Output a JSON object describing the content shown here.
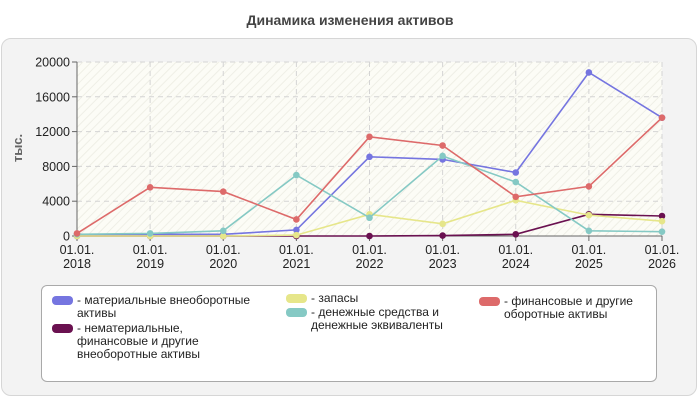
{
  "chart_data": {
    "type": "line",
    "title": "Динамика изменения активов",
    "ylabel": "тыс.",
    "xlabel": "",
    "categories": [
      "01.01.\n2018",
      "01.01.\n2019",
      "01.01.\n2020",
      "01.01.\n2021",
      "01.01.\n2022",
      "01.01.\n2023",
      "01.01.\n2024",
      "01.01.\n2025",
      "01.01.\n2026"
    ],
    "ylim": [
      0,
      20000
    ],
    "yticks": [
      "0",
      "4000",
      "8000",
      "12000",
      "16000",
      "20000"
    ],
    "grid": true,
    "legend_position": "bottom",
    "series": [
      {
        "name": "- материальные внеоборотные\nактивы",
        "color": "#7575e0",
        "values": [
          200,
          200,
          200,
          700,
          9100,
          8800,
          7300,
          18800,
          13600
        ]
      },
      {
        "name": "- нематериальные,\nфинансовые и другие\nвнеоборотные активы",
        "color": "#6a1150",
        "values": [
          0,
          0,
          0,
          0,
          0,
          50,
          200,
          2500,
          2300
        ]
      },
      {
        "name": "- запасы",
        "color": "#e6e68a",
        "values": [
          0,
          0,
          0,
          100,
          2500,
          1400,
          4100,
          2400,
          1700
        ]
      },
      {
        "name": "- денежные средства и\nденежные эквиваленты",
        "color": "#85c9c4",
        "values": [
          200,
          300,
          600,
          7000,
          2100,
          9200,
          6200,
          600,
          500
        ]
      },
      {
        "name": "- финансовые и другие\nоборотные активы",
        "color": "#dd6a6a",
        "values": [
          300,
          5600,
          5100,
          1900,
          11400,
          10400,
          4500,
          5700,
          13600
        ]
      }
    ]
  }
}
